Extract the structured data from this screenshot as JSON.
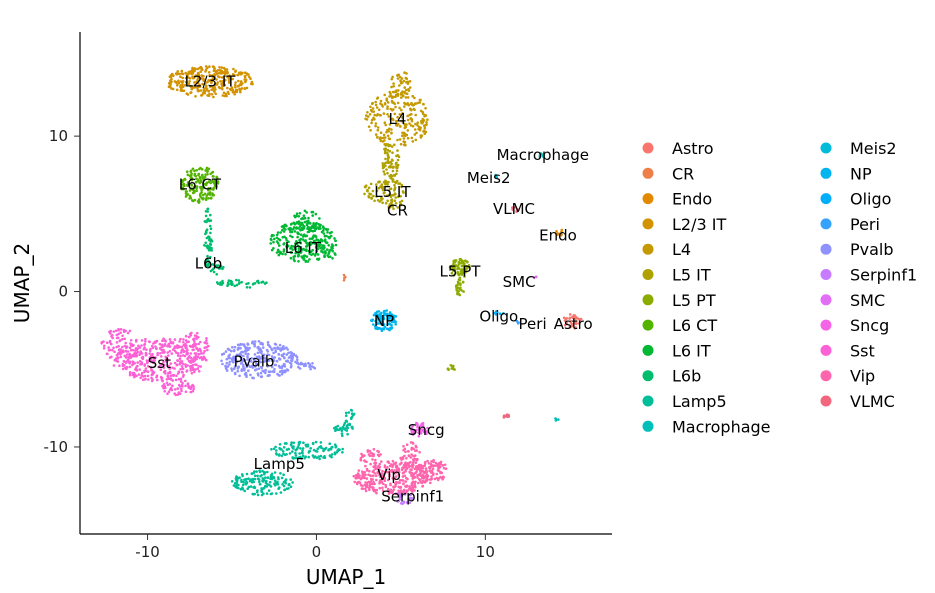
{
  "chart_data": {
    "type": "scatter",
    "xlabel": "UMAP_1",
    "ylabel": "UMAP_2",
    "xlim": [
      -14,
      17.5
    ],
    "ylim": [
      -15.6,
      16.7
    ],
    "x_ticks": [
      -10,
      0,
      10
    ],
    "y_ticks": [
      -10,
      0,
      10
    ],
    "tick_labels": {
      "x": [
        "-10",
        "0",
        "10"
      ],
      "y": [
        "-10",
        "0",
        "10"
      ]
    },
    "grid": false,
    "legend_position": "right",
    "categories": [
      "Astro",
      "CR",
      "Endo",
      "L2/3 IT",
      "L4",
      "L5 IT",
      "L5 PT",
      "L6 CT",
      "L6 IT",
      "L6b",
      "Lamp5",
      "Macrophage",
      "Meis2",
      "NP",
      "Oligo",
      "Peri",
      "Pvalb",
      "Serpinf1",
      "SMC",
      "Sncg",
      "Sst",
      "Vip",
      "VLMC"
    ],
    "colors": {
      "Astro": "#F8766D",
      "CR": "#EF7F49",
      "Endo": "#E38900",
      "L2/3 IT": "#D39200",
      "L4": "#C49A00",
      "L5 IT": "#AFA100",
      "L5 PT": "#8CAB00",
      "L6 CT": "#53B400",
      "L6 IT": "#00B833",
      "L6b": "#00BD6E",
      "Lamp5": "#00BE98",
      "Macrophage": "#00BFB9",
      "Meis2": "#00BCD8",
      "NP": "#00B5EE",
      "Oligo": "#00AEFA",
      "Peri": "#35A2FF",
      "Pvalb": "#8F91FF",
      "Serpinf1": "#C77CFF",
      "SMC": "#E36EF6",
      "Sncg": "#F365E6",
      "Sst": "#FC61D5",
      "Vip": "#FF65AD",
      "VLMC": "#F2667E"
    },
    "clusters": [
      {
        "name": "L2/3 IT",
        "label": "L2/3 IT",
        "label_pos": [
          -6.3,
          13.5
        ],
        "regions": [
          {
            "cx": -6.3,
            "cy": 13.5,
            "rx": 2.6,
            "ry": 1.0,
            "n": 300
          }
        ]
      },
      {
        "name": "L4",
        "label": "L4",
        "label_pos": [
          4.8,
          11.1
        ],
        "regions": [
          {
            "cx": 4.8,
            "cy": 11.1,
            "rx": 1.9,
            "ry": 1.8,
            "n": 230
          },
          {
            "cx": 5.0,
            "cy": 13.4,
            "rx": 0.6,
            "ry": 0.9,
            "n": 40
          }
        ]
      },
      {
        "name": "L5 IT",
        "label": "L5 IT",
        "label_pos": [
          4.5,
          6.4
        ],
        "regions": [
          {
            "cx": 4.0,
            "cy": 6.5,
            "rx": 1.2,
            "ry": 0.8,
            "n": 80
          },
          {
            "cx": 4.4,
            "cy": 8.4,
            "rx": 0.5,
            "ry": 1.3,
            "n": 70
          },
          {
            "cx": 4.7,
            "cy": 5.6,
            "rx": 0.6,
            "ry": 0.4,
            "n": 20
          }
        ]
      },
      {
        "name": "CR",
        "label": "CR",
        "label_pos": [
          4.8,
          5.2
        ],
        "regions": [
          {
            "cx": 1.6,
            "cy": 0.9,
            "rx": 0.15,
            "ry": 0.2,
            "n": 5
          }
        ]
      },
      {
        "name": "L6 CT",
        "label": "L6 CT",
        "label_pos": [
          -6.9,
          6.9
        ],
        "regions": [
          {
            "cx": -6.9,
            "cy": 6.9,
            "rx": 1.1,
            "ry": 1.2,
            "n": 160
          }
        ]
      },
      {
        "name": "L6b",
        "label": "L6b",
        "label_pos": [
          -6.4,
          1.8
        ],
        "regions": [
          {
            "cx": -6.4,
            "cy": 3.5,
            "rx": 0.25,
            "ry": 2.0,
            "n": 60
          },
          {
            "cx": -4.5,
            "cy": 0.5,
            "rx": 1.6,
            "ry": 0.25,
            "n": 40
          },
          {
            "cx": -5.9,
            "cy": 1.5,
            "rx": 0.4,
            "ry": 0.4,
            "n": 15
          }
        ]
      },
      {
        "name": "L6 IT",
        "label": "L6 IT",
        "label_pos": [
          -0.8,
          2.8
        ],
        "regions": [
          {
            "cx": -0.8,
            "cy": 3.2,
            "rx": 2.0,
            "ry": 1.3,
            "n": 280
          },
          {
            "cx": -0.6,
            "cy": 4.6,
            "rx": 0.8,
            "ry": 0.6,
            "n": 40
          },
          {
            "cx": 0.9,
            "cy": 2.3,
            "rx": 0.3,
            "ry": 0.2,
            "n": 8
          }
        ]
      },
      {
        "name": "L5 PT",
        "label": "L5 PT",
        "label_pos": [
          8.5,
          1.3
        ],
        "regions": [
          {
            "cx": 8.5,
            "cy": 1.5,
            "rx": 0.6,
            "ry": 0.6,
            "n": 70
          },
          {
            "cx": 8.5,
            "cy": 0.3,
            "rx": 0.25,
            "ry": 0.6,
            "n": 25
          },
          {
            "cx": 8.0,
            "cy": -4.9,
            "rx": 0.25,
            "ry": 0.2,
            "n": 10
          }
        ]
      },
      {
        "name": "NP",
        "label": "NP",
        "label_pos": [
          4.0,
          -1.9
        ],
        "regions": [
          {
            "cx": 4.0,
            "cy": -1.9,
            "rx": 0.8,
            "ry": 0.7,
            "n": 110
          }
        ]
      },
      {
        "name": "Macrophage",
        "label": "Macrophage",
        "label_pos": [
          13.4,
          8.8
        ],
        "regions": [
          {
            "cx": 13.3,
            "cy": 8.8,
            "rx": 0.2,
            "ry": 0.2,
            "n": 6
          },
          {
            "cx": 14.2,
            "cy": -8.2,
            "rx": 0.2,
            "ry": 0.1,
            "n": 4
          }
        ]
      },
      {
        "name": "Meis2",
        "label": "Meis2",
        "label_pos": [
          10.2,
          7.3
        ],
        "regions": [
          {
            "cx": 10.6,
            "cy": 7.4,
            "rx": 0.15,
            "ry": 0.15,
            "n": 3
          }
        ]
      },
      {
        "name": "VLMC",
        "label": "VLMC",
        "label_pos": [
          11.7,
          5.3
        ],
        "regions": [
          {
            "cx": 11.8,
            "cy": 5.3,
            "rx": 0.25,
            "ry": 0.2,
            "n": 8
          },
          {
            "cx": 11.2,
            "cy": -8.0,
            "rx": 0.2,
            "ry": 0.15,
            "n": 10
          }
        ]
      },
      {
        "name": "Endo",
        "label": "Endo",
        "label_pos": [
          14.3,
          3.6
        ],
        "regions": [
          {
            "cx": 14.4,
            "cy": 3.8,
            "rx": 0.25,
            "ry": 0.2,
            "n": 8
          }
        ]
      },
      {
        "name": "SMC",
        "label": "SMC",
        "label_pos": [
          12.0,
          0.6
        ],
        "regions": [
          {
            "cx": 12.9,
            "cy": 0.9,
            "rx": 0.15,
            "ry": 0.15,
            "n": 3
          }
        ]
      },
      {
        "name": "Oligo",
        "label": "Oligo",
        "label_pos": [
          10.8,
          -1.6
        ],
        "regions": [
          {
            "cx": 10.8,
            "cy": -1.4,
            "rx": 0.3,
            "ry": 0.15,
            "n": 6
          }
        ]
      },
      {
        "name": "Peri",
        "label": "Peri",
        "label_pos": [
          12.8,
          -2.1
        ],
        "regions": [
          {
            "cx": 12.0,
            "cy": -1.9,
            "rx": 0.15,
            "ry": 0.15,
            "n": 3
          }
        ]
      },
      {
        "name": "Astro",
        "label": "Astro",
        "label_pos": [
          15.2,
          -2.1
        ],
        "regions": [
          {
            "cx": 15.2,
            "cy": -1.9,
            "rx": 0.6,
            "ry": 0.5,
            "n": 40
          }
        ]
      },
      {
        "name": "Sst",
        "label": "Sst",
        "label_pos": [
          -9.3,
          -4.6
        ],
        "regions": [
          {
            "cx": -9.3,
            "cy": -4.4,
            "rx": 2.8,
            "ry": 1.4,
            "n": 380
          },
          {
            "cx": -11.6,
            "cy": -3.4,
            "rx": 1.2,
            "ry": 1.0,
            "n": 80
          },
          {
            "cx": -7.3,
            "cy": -3.5,
            "rx": 1.0,
            "ry": 0.9,
            "n": 60
          },
          {
            "cx": -8.2,
            "cy": -6.2,
            "rx": 1.0,
            "ry": 0.5,
            "n": 50
          }
        ]
      },
      {
        "name": "Pvalb",
        "label": "Pvalb",
        "label_pos": [
          -3.7,
          -4.5
        ],
        "regions": [
          {
            "cx": -3.4,
            "cy": -4.4,
            "rx": 2.3,
            "ry": 1.2,
            "n": 300
          },
          {
            "cx": -0.6,
            "cy": -4.8,
            "rx": 0.6,
            "ry": 0.25,
            "n": 20
          }
        ]
      },
      {
        "name": "Lamp5",
        "label": "Lamp5",
        "label_pos": [
          -2.2,
          -11.1
        ],
        "regions": [
          {
            "cx": -3.2,
            "cy": -12.3,
            "rx": 1.8,
            "ry": 0.8,
            "n": 150
          },
          {
            "cx": -0.5,
            "cy": -10.2,
            "rx": 2.2,
            "ry": 0.6,
            "n": 120
          },
          {
            "cx": 1.6,
            "cy": -8.8,
            "rx": 0.6,
            "ry": 0.5,
            "n": 40
          },
          {
            "cx": 2.0,
            "cy": -7.9,
            "rx": 0.25,
            "ry": 0.3,
            "n": 12
          }
        ]
      },
      {
        "name": "Vip",
        "label": "Vip",
        "label_pos": [
          4.3,
          -11.8
        ],
        "regions": [
          {
            "cx": 4.4,
            "cy": -12.0,
            "rx": 2.3,
            "ry": 1.1,
            "n": 320
          },
          {
            "cx": 6.8,
            "cy": -11.6,
            "rx": 1.0,
            "ry": 0.8,
            "n": 90
          },
          {
            "cx": 5.6,
            "cy": -10.7,
            "rx": 0.7,
            "ry": 1.0,
            "n": 60
          },
          {
            "cx": 3.2,
            "cy": -10.6,
            "rx": 0.7,
            "ry": 0.5,
            "n": 30
          }
        ]
      },
      {
        "name": "Serpinf1",
        "label": "Serpinf1",
        "label_pos": [
          5.7,
          -13.2
        ],
        "regions": [
          {
            "cx": 5.2,
            "cy": -13.3,
            "rx": 0.5,
            "ry": 0.4,
            "n": 25
          }
        ]
      },
      {
        "name": "Sncg",
        "label": "Sncg",
        "label_pos": [
          6.5,
          -8.9
        ],
        "regions": [
          {
            "cx": 6.1,
            "cy": -8.9,
            "rx": 0.5,
            "ry": 0.5,
            "n": 40
          }
        ]
      }
    ]
  }
}
